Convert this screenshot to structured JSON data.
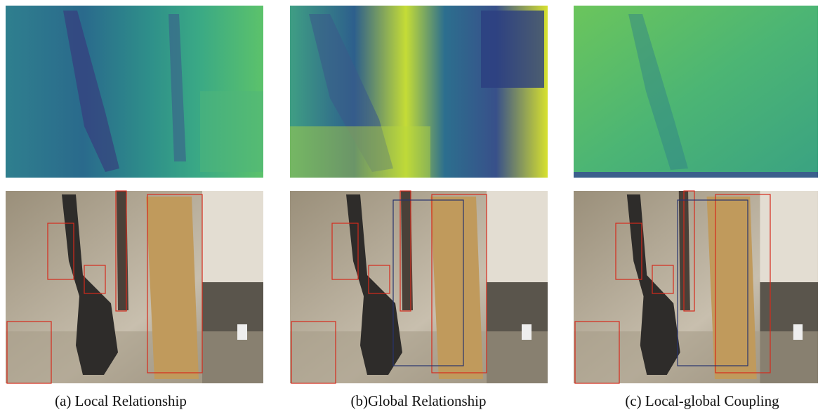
{
  "figure": {
    "captions": [
      "(a) Local Relationship",
      "(b)Global Relationship",
      "(c) Local-global Coupling"
    ]
  }
}
